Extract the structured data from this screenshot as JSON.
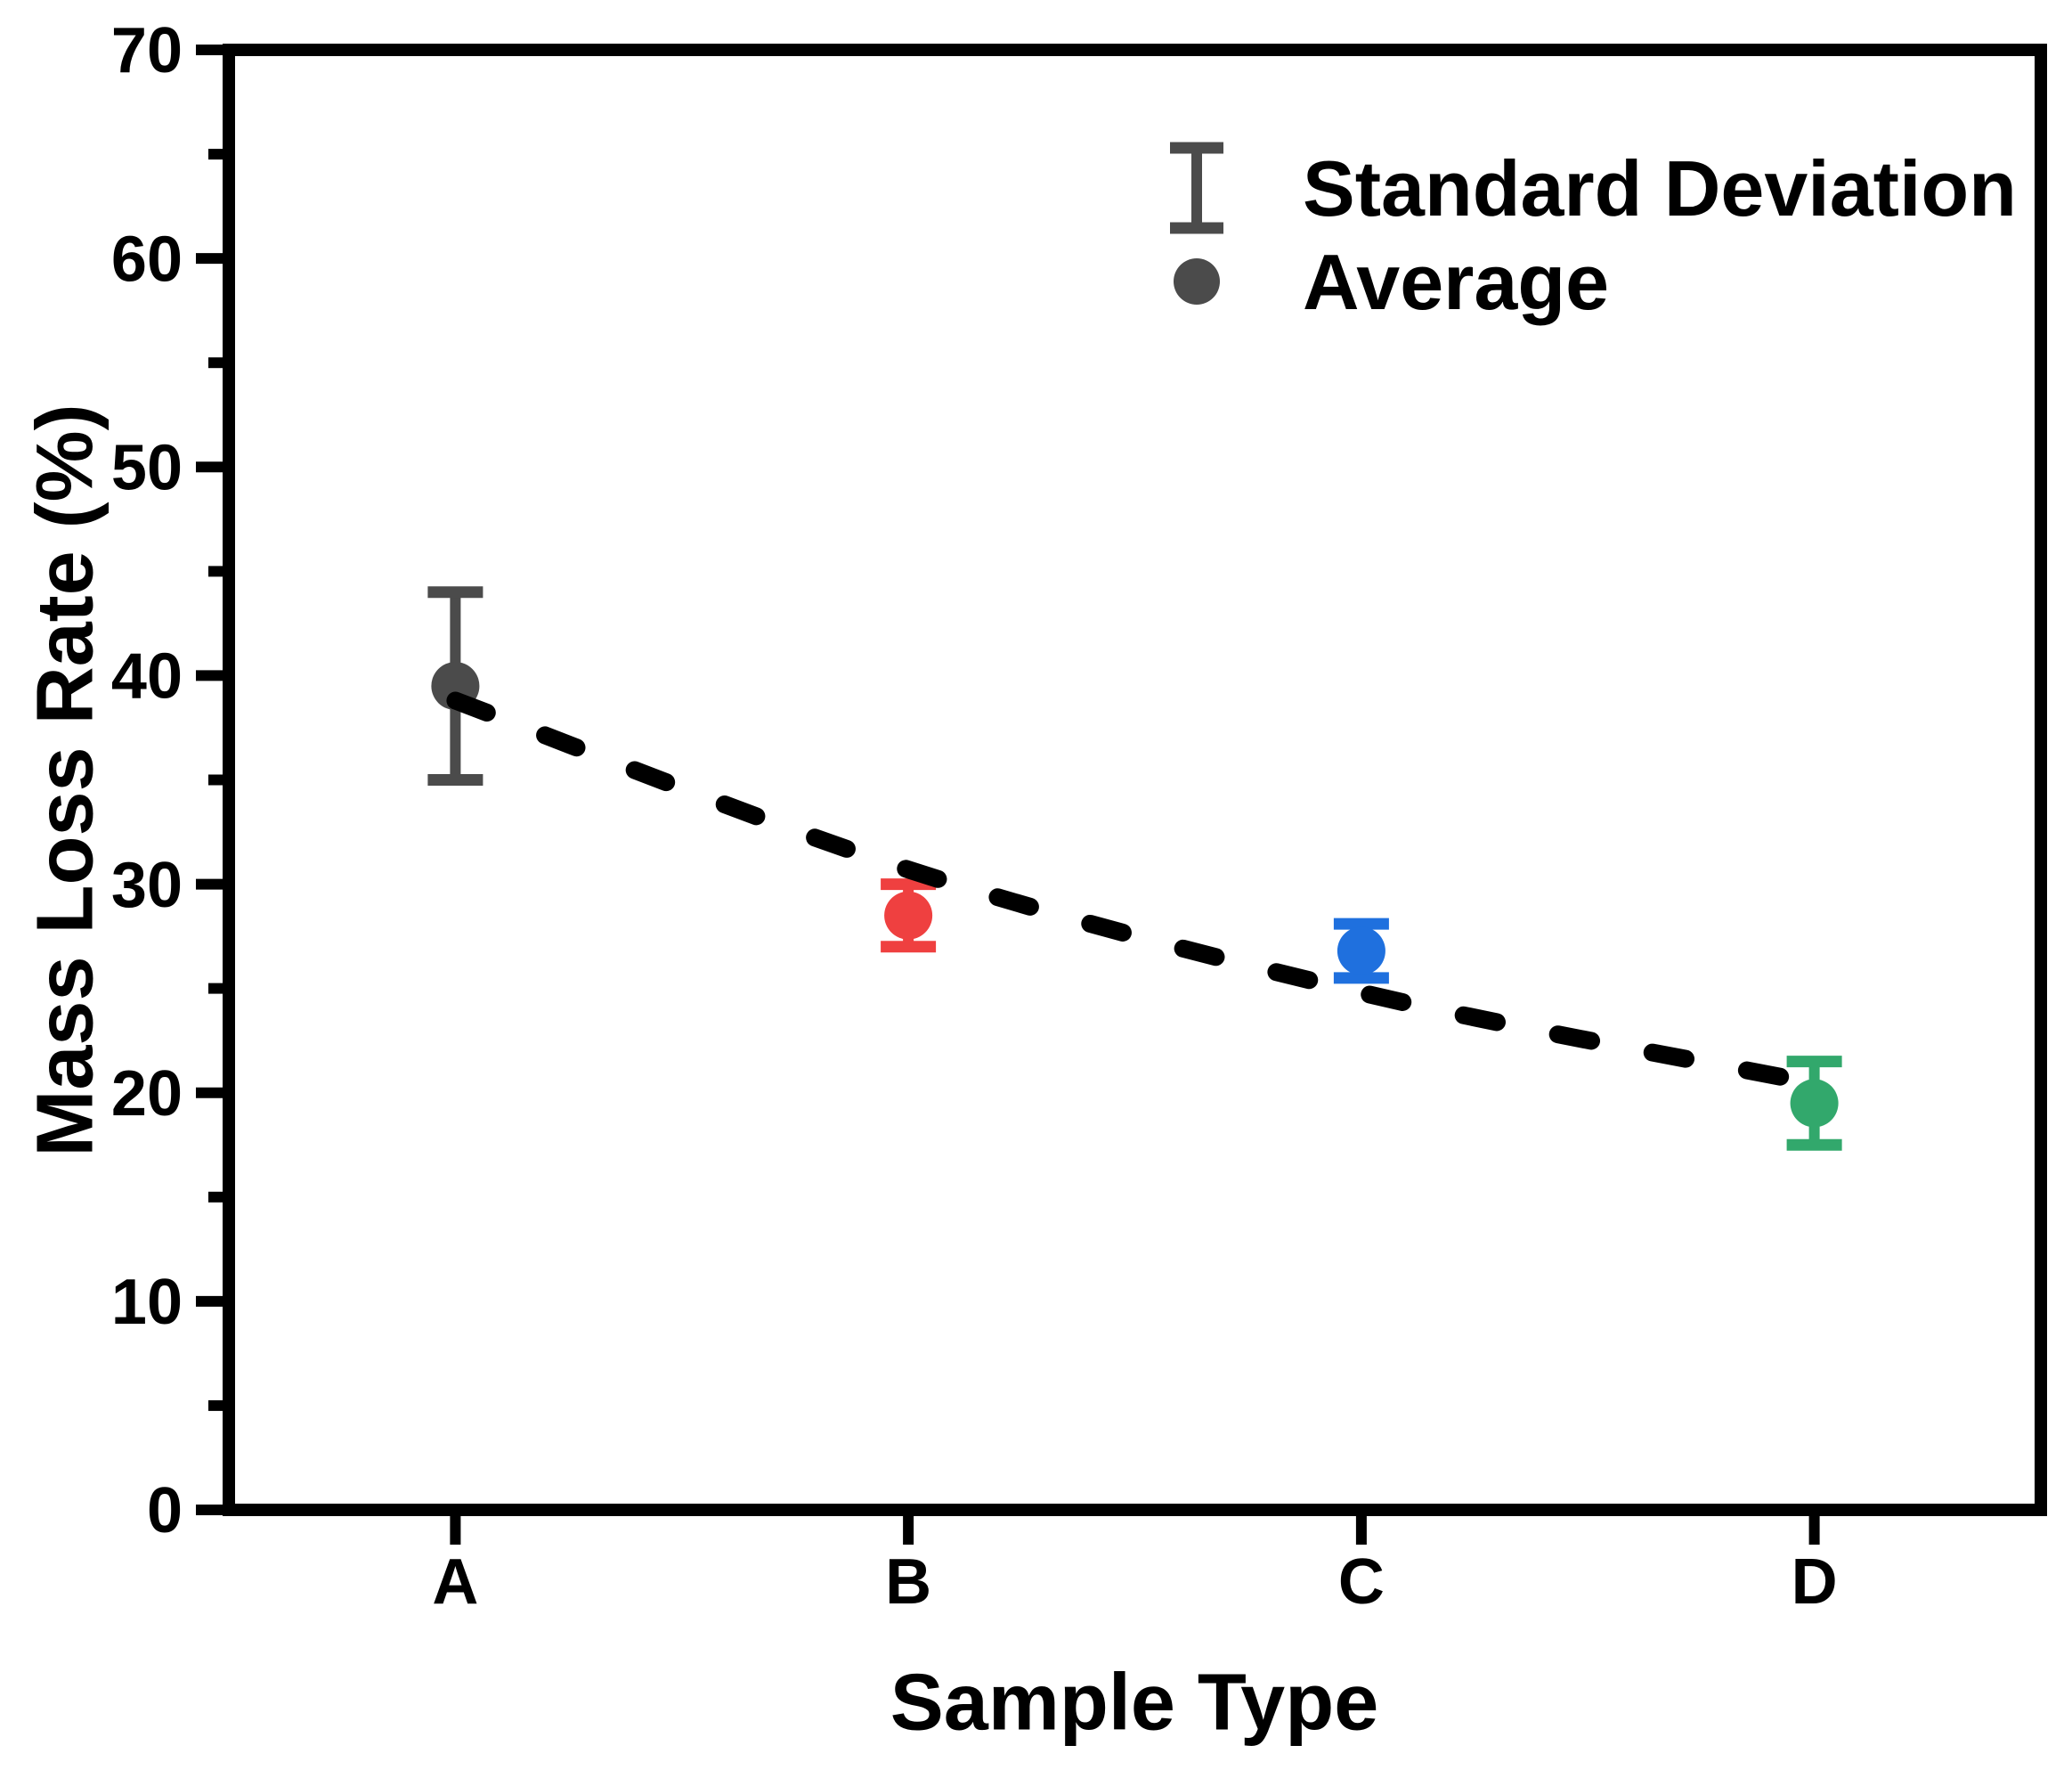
{
  "chart_data": {
    "type": "scatter",
    "title": "",
    "xlabel": "Sample Type",
    "ylabel": "Mass Loss Rate (%)",
    "categories": [
      "A",
      "B",
      "C",
      "D"
    ],
    "ylim": [
      0,
      70
    ],
    "y_major_step": 10,
    "y_minor_step": 5,
    "y_tick_labels": [
      "0",
      "10",
      "20",
      "30",
      "40",
      "50",
      "60",
      "70"
    ],
    "grid": false,
    "axis_color": "#000000",
    "background_color": "#ffffff",
    "series": [
      {
        "name": "Average",
        "values": [
          39.5,
          28.5,
          26.8,
          19.5
        ],
        "std_dev": [
          4.5,
          1.5,
          1.3,
          2.0
        ],
        "colors": [
          "#4b4b4b",
          "#ef4040",
          "#1f70de",
          "#32a86c"
        ]
      }
    ],
    "fit_line": {
      "style": "dashed",
      "color": "#000000",
      "x_index": [
        0,
        1,
        2,
        2.94
      ],
      "values": [
        38.8,
        30.7,
        24.8,
        20.7
      ]
    },
    "legend": {
      "position": "top-right",
      "symbol_color": "#4b4b4b",
      "items": [
        {
          "symbol": "error-bar",
          "label": "Standard Deviation"
        },
        {
          "symbol": "circle",
          "label": "Average"
        }
      ]
    }
  }
}
